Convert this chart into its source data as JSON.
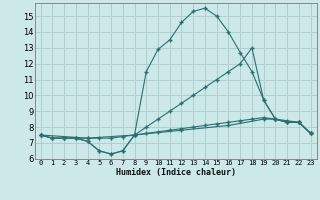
{
  "xlabel": "Humidex (Indice chaleur)",
  "bg_color": "#cce8e8",
  "line_color": "#2a7070",
  "grid_color": "#b0d0d0",
  "xlim": [
    -0.5,
    23.5
  ],
  "ylim": [
    6,
    15.8
  ],
  "yticks": [
    6,
    7,
    8,
    9,
    10,
    11,
    12,
    13,
    14,
    15
  ],
  "xticks": [
    0,
    1,
    2,
    3,
    4,
    5,
    6,
    7,
    8,
    9,
    10,
    11,
    12,
    13,
    14,
    15,
    16,
    17,
    18,
    19,
    20,
    21,
    22,
    23
  ],
  "curve_main_x": [
    0,
    1,
    2,
    3,
    4,
    5,
    6,
    7,
    8,
    9,
    10,
    11,
    12,
    13,
    14,
    15,
    16,
    17,
    18,
    19,
    20,
    21,
    22,
    23
  ],
  "curve_main_y": [
    7.5,
    7.3,
    7.3,
    7.3,
    7.1,
    6.5,
    6.3,
    6.5,
    7.5,
    11.5,
    12.9,
    13.5,
    14.6,
    15.3,
    15.5,
    15.0,
    14.0,
    12.7,
    11.5,
    9.7,
    8.5,
    8.3,
    8.3,
    7.6
  ],
  "curve_dip_x": [
    0,
    1,
    2,
    3,
    4,
    5,
    6,
    7,
    8,
    9,
    10,
    11,
    12,
    13,
    14,
    15,
    16,
    17,
    18,
    19,
    20,
    21,
    22,
    23
  ],
  "curve_dip_y": [
    7.5,
    7.3,
    7.3,
    7.3,
    7.1,
    6.5,
    6.3,
    6.5,
    7.5,
    8.0,
    8.5,
    9.0,
    9.5,
    10.0,
    10.5,
    11.0,
    11.5,
    12.0,
    13.0,
    9.7,
    8.5,
    8.3,
    8.3,
    7.6
  ],
  "curve_flat1_x": [
    0,
    1,
    2,
    3,
    4,
    5,
    6,
    7,
    8,
    9,
    10,
    11,
    12,
    13,
    14,
    15,
    16,
    17,
    18,
    19,
    20,
    21,
    22,
    23
  ],
  "curve_flat1_y": [
    7.5,
    7.3,
    7.3,
    7.3,
    7.3,
    7.3,
    7.3,
    7.4,
    7.5,
    7.6,
    7.7,
    7.8,
    7.9,
    8.0,
    8.1,
    8.2,
    8.3,
    8.4,
    8.5,
    8.6,
    8.5,
    8.4,
    8.3,
    7.6
  ],
  "curve_flat2_x": [
    0,
    4,
    8,
    12,
    16,
    19,
    20,
    21,
    22,
    23
  ],
  "curve_flat2_y": [
    7.5,
    7.3,
    7.5,
    7.8,
    8.1,
    8.5,
    8.5,
    8.3,
    8.3,
    7.6
  ]
}
